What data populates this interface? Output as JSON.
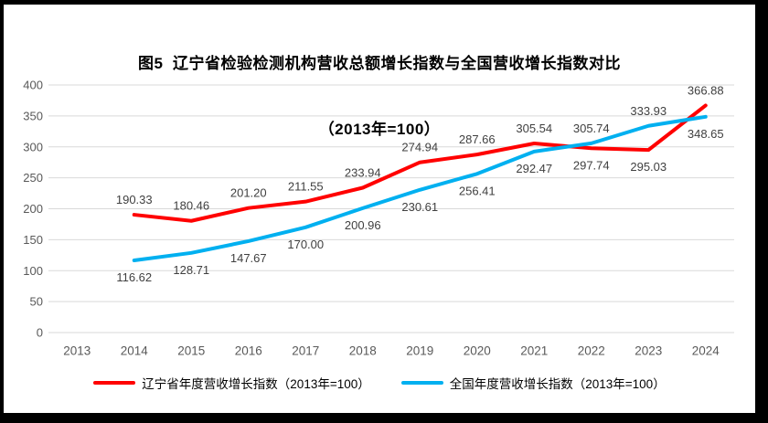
{
  "title": {
    "line1": "图5  辽宁省检验检测机构营收总额增长指数与全国营收增长指数对比",
    "line2": "（2013年=100）"
  },
  "chart_data": {
    "type": "line",
    "categories": [
      "2013",
      "2014",
      "2015",
      "2016",
      "2017",
      "2018",
      "2019",
      "2020",
      "2021",
      "2022",
      "2023",
      "2024"
    ],
    "series": [
      {
        "name": "辽宁省年度营收增长指数（2013年=100）",
        "color": "#ff0000",
        "values": [
          null,
          190.33,
          180.46,
          201.2,
          211.55,
          233.94,
          274.94,
          287.66,
          305.54,
          297.74,
          295.03,
          366.88
        ],
        "label_side": [
          null,
          "above",
          "above",
          "above",
          "above",
          "above",
          "above",
          "above",
          "above",
          "below",
          "below",
          "above"
        ]
      },
      {
        "name": "全国年度营收增长指数（2013年=100）",
        "color": "#00b0f0",
        "values": [
          null,
          116.62,
          128.71,
          147.67,
          170.0,
          200.96,
          230.61,
          256.41,
          292.47,
          305.74,
          333.93,
          348.65
        ],
        "label_side": [
          null,
          "below",
          "below",
          "below",
          "below",
          "below",
          "below",
          "below",
          "below",
          "above",
          "above",
          "below"
        ]
      }
    ],
    "xlabel": "",
    "ylabel": "",
    "ylim": [
      0,
      400
    ],
    "ytick_step": 50,
    "grid": "horizontal",
    "legend_position": "bottom",
    "grid_color": "#d9d9d9",
    "axis_text_color": "#595959",
    "data_label_color": "#404040"
  }
}
